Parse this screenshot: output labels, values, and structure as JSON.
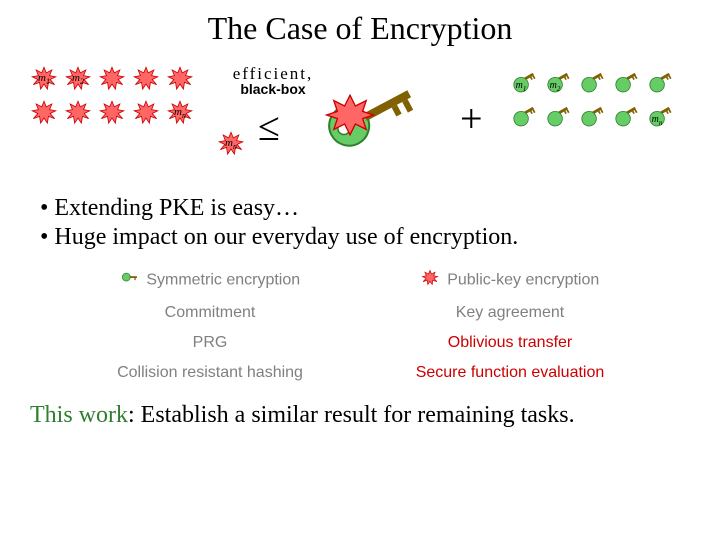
{
  "title": "The Case of Encryption",
  "colors": {
    "splat_fill": "#ff6666",
    "splat_stroke": "#cc0000",
    "key_fill": "#66cc66",
    "key_stroke": "#2f7f2f",
    "key_bit": "#806000",
    "text_gray": "#808080",
    "text_red": "#cc0000",
    "text_green": "#2f7f2f"
  },
  "left_grid": {
    "labels": [
      "m1",
      "m2",
      "",
      "",
      "",
      "",
      "",
      "",
      "",
      "mn"
    ]
  },
  "right_grid": {
    "labels": [
      "m1",
      "m2",
      "",
      "",
      "",
      "",
      "",
      "",
      "",
      "mn"
    ]
  },
  "label_stack": {
    "l1": "efficient,",
    "l2": "black-box"
  },
  "leq": "≤",
  "plus": "+",
  "bullets": [
    "Extending PKE is easy…",
    "Huge impact on our everyday use of encryption."
  ],
  "table": {
    "left": [
      "Symmetric encryption",
      "Commitment",
      "PRG",
      "Collision resistant hashing"
    ],
    "right": [
      "Public-key encryption",
      "Key agreement",
      "Oblivious transfer",
      "Secure function evaluation"
    ],
    "right_highlight": [
      false,
      false,
      true,
      true
    ]
  },
  "closing": {
    "prefix": "This work",
    "rest": ": Establish a similar result for remaining tasks."
  }
}
